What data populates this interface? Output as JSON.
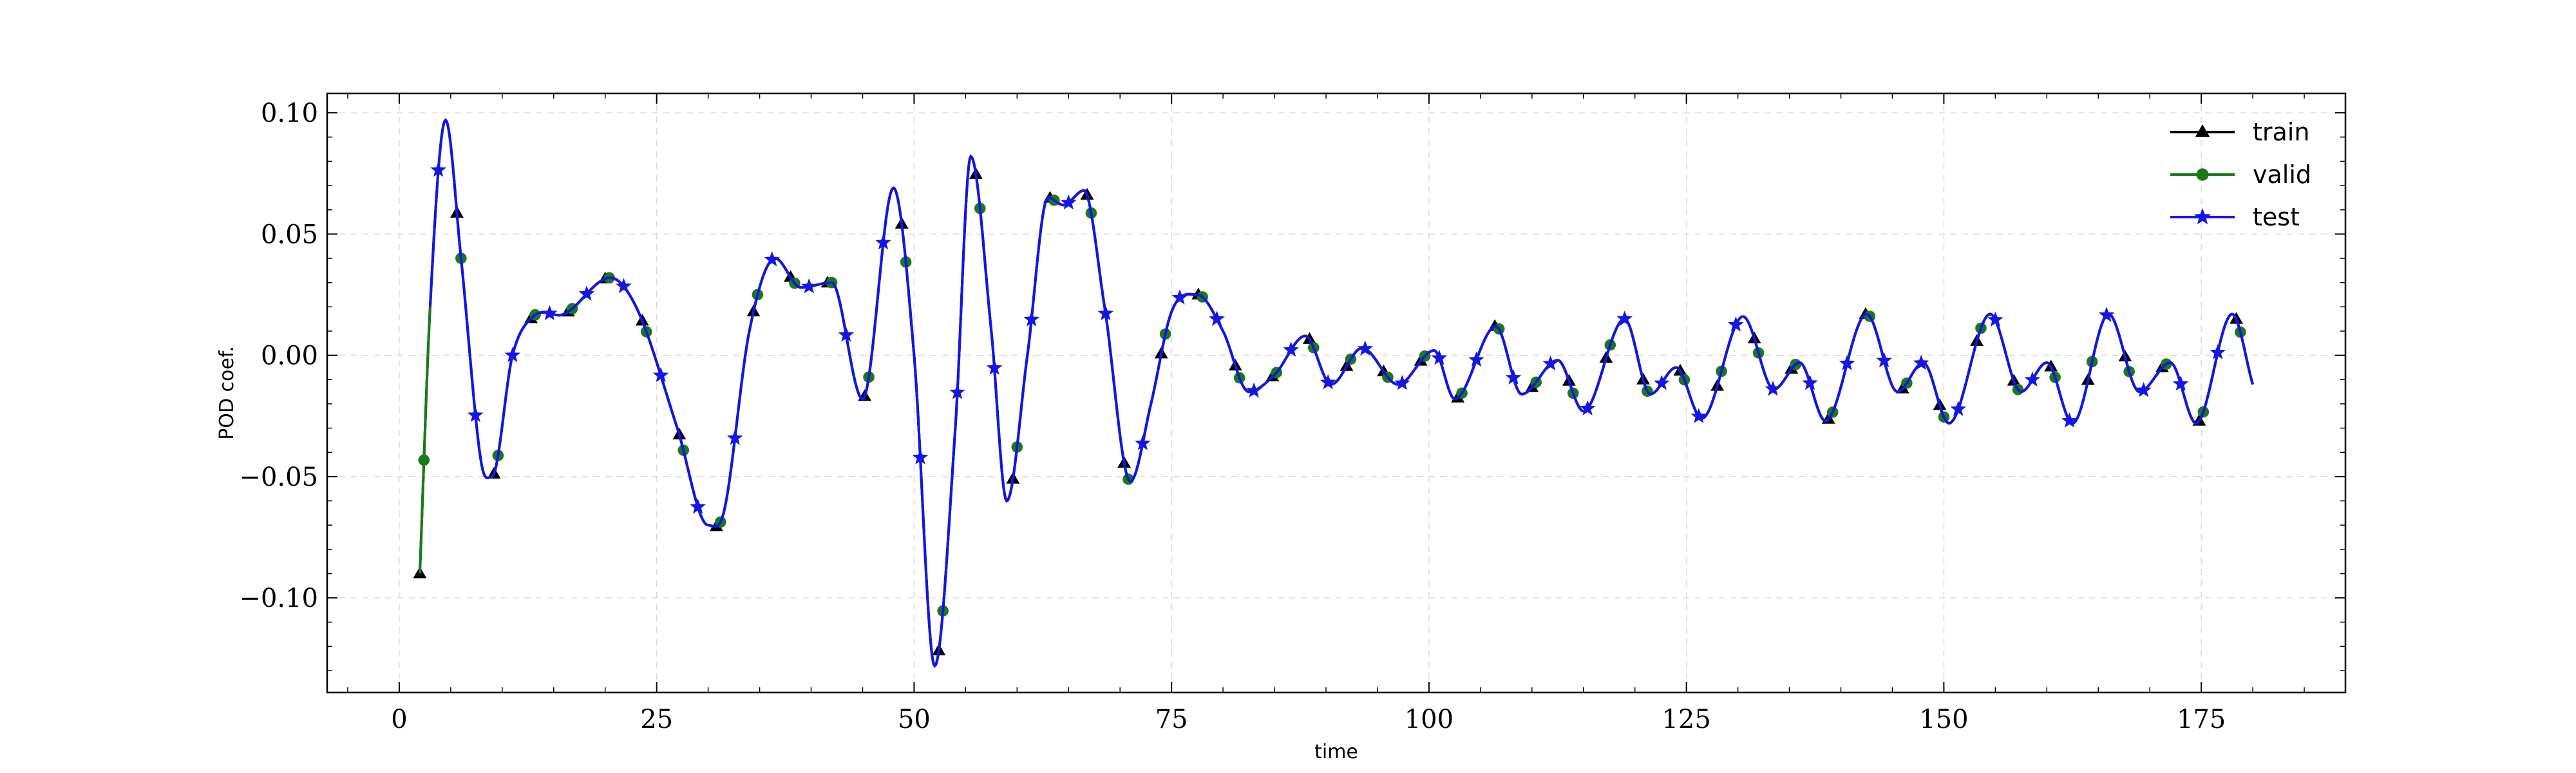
{
  "chart_data": {
    "type": "line",
    "xlabel": "time",
    "ylabel": "POD coef.",
    "xlim": [
      -7,
      189
    ],
    "ylim": [
      -0.139,
      0.108
    ],
    "xticks": [
      0,
      25,
      50,
      75,
      100,
      125,
      150,
      175
    ],
    "xtick_labels": [
      "0",
      "25",
      "50",
      "75",
      "100",
      "125",
      "150",
      "175"
    ],
    "yticks": [
      0.1,
      0.05,
      0.0,
      -0.05,
      -0.1
    ],
    "ytick_labels": [
      "0.10",
      "0.05",
      "0.00",
      "−0.05",
      "−0.10"
    ],
    "grid": true,
    "legend_position": "top-right",
    "curve_keypoints": [
      [
        2.0,
        -0.09
      ],
      [
        3.0,
        0.02
      ],
      [
        4.5,
        0.097
      ],
      [
        6.0,
        0.04
      ],
      [
        8.0,
        -0.045
      ],
      [
        9.0,
        -0.05
      ],
      [
        11.0,
        0.0
      ],
      [
        13.0,
        0.016
      ],
      [
        16.0,
        0.017
      ],
      [
        20.5,
        0.032
      ],
      [
        23.0,
        0.02
      ],
      [
        27.0,
        -0.03
      ],
      [
        30.0,
        -0.07
      ],
      [
        31.5,
        -0.065
      ],
      [
        34.0,
        0.01
      ],
      [
        36.5,
        0.04
      ],
      [
        39.0,
        0.028
      ],
      [
        42.0,
        0.03
      ],
      [
        45.0,
        -0.018
      ],
      [
        48.0,
        0.069
      ],
      [
        50.0,
        0.0
      ],
      [
        52.0,
        -0.128
      ],
      [
        54.0,
        -0.03
      ],
      [
        55.5,
        0.082
      ],
      [
        57.5,
        0.01
      ],
      [
        59.0,
        -0.06
      ],
      [
        61.0,
        0.0
      ],
      [
        63.0,
        0.065
      ],
      [
        64.5,
        0.062
      ],
      [
        66.5,
        0.068
      ],
      [
        68.5,
        0.02
      ],
      [
        71.0,
        -0.052
      ],
      [
        73.0,
        -0.02
      ],
      [
        75.0,
        0.018
      ],
      [
        77.5,
        0.025
      ],
      [
        80.0,
        0.01
      ],
      [
        82.5,
        -0.015
      ],
      [
        85.0,
        -0.008
      ],
      [
        88.0,
        0.008
      ],
      [
        90.5,
        -0.012
      ],
      [
        93.5,
        0.003
      ],
      [
        97.0,
        -0.012
      ],
      [
        100.5,
        0.002
      ],
      [
        102.5,
        -0.018
      ],
      [
        106.5,
        0.012
      ],
      [
        109.0,
        -0.016
      ],
      [
        112.5,
        -0.002
      ],
      [
        115.0,
        -0.023
      ],
      [
        119.0,
        0.015
      ],
      [
        121.5,
        -0.016
      ],
      [
        124.0,
        -0.005
      ],
      [
        126.5,
        -0.026
      ],
      [
        130.5,
        0.016
      ],
      [
        133.5,
        -0.014
      ],
      [
        136.0,
        -0.003
      ],
      [
        138.5,
        -0.027
      ],
      [
        142.5,
        0.017
      ],
      [
        145.5,
        -0.015
      ],
      [
        148.0,
        -0.003
      ],
      [
        150.5,
        -0.028
      ],
      [
        154.5,
        0.017
      ],
      [
        157.5,
        -0.015
      ],
      [
        160.0,
        -0.003
      ],
      [
        162.5,
        -0.028
      ],
      [
        166.0,
        0.017
      ],
      [
        169.0,
        -0.015
      ],
      [
        172.0,
        -0.003
      ],
      [
        174.5,
        -0.028
      ],
      [
        178.0,
        0.017
      ],
      [
        180.0,
        -0.012
      ]
    ],
    "series": [
      {
        "name": "train",
        "color": "#000000",
        "marker": "triangle",
        "x_range": [
          2.0,
          180.0
        ],
        "marker_step": 1.2,
        "marker_offset": 0.0
      },
      {
        "name": "valid",
        "color": "#1a7a1a",
        "marker": "circle",
        "x_range": [
          2.0,
          180.0
        ],
        "marker_step": 1.2,
        "marker_offset": 0.4
      },
      {
        "name": "test",
        "color": "#1515e6",
        "marker": "star",
        "x_range": [
          3.0,
          180.0
        ],
        "marker_step": 1.2,
        "marker_offset": 0.8
      }
    ]
  }
}
